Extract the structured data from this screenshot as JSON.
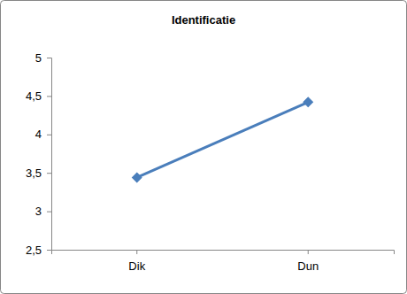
{
  "chart_data": {
    "type": "line",
    "title": "Identificatie",
    "categories": [
      "Dik",
      "Dun"
    ],
    "values": [
      3.44,
      4.42
    ],
    "color": "#4a7ebb",
    "marker": "diamond",
    "ylim": [
      2.5,
      5
    ],
    "yticks": [
      {
        "value": 2.5,
        "label": "2,5"
      },
      3,
      {
        "value": 3.5,
        "label": "3,5"
      },
      4,
      {
        "value": 4.5,
        "label": "4,5"
      },
      5
    ],
    "grid": false
  }
}
